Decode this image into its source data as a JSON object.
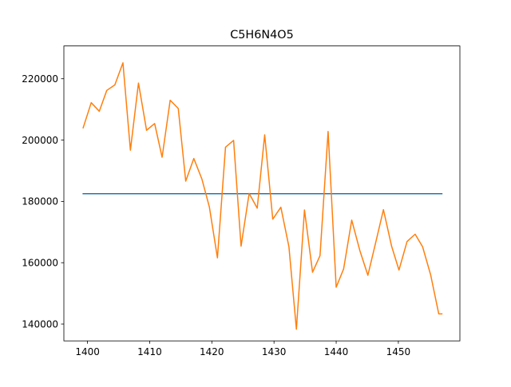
{
  "chart_data": {
    "type": "line",
    "title": "C5H6N4O5",
    "xlabel": "",
    "ylabel": "",
    "xlim": [
      1396.2,
      1459.9
    ],
    "ylim": [
      134500,
      230700
    ],
    "xticks": [
      1400,
      1410,
      1420,
      1430,
      1440,
      1450
    ],
    "yticks": [
      140000,
      160000,
      180000,
      200000,
      220000
    ],
    "xtick_labels": [
      "1400",
      "1410",
      "1420",
      "1430",
      "1440",
      "1450"
    ],
    "ytick_labels": [
      "140000",
      "160000",
      "180000",
      "200000",
      "220000"
    ],
    "grid": false,
    "legend": "none",
    "series": [
      {
        "color": "#1f77b4",
        "x": [
          1399.3,
          1457.0
        ],
        "y": [
          182500,
          182500
        ]
      },
      {
        "color": "#ff7f0e",
        "x": [
          1399.3,
          1400.6,
          1401.9,
          1403.1,
          1404.4,
          1405.7,
          1406.9,
          1408.2,
          1409.5,
          1410.8,
          1412.0,
          1413.3,
          1414.6,
          1415.8,
          1417.1,
          1418.4,
          1419.6,
          1420.9,
          1422.2,
          1423.5,
          1424.7,
          1426.0,
          1427.3,
          1428.5,
          1429.8,
          1431.1,
          1432.4,
          1433.6,
          1434.9,
          1436.2,
          1437.4,
          1438.7,
          1440.0,
          1441.2,
          1442.5,
          1443.8,
          1445.1,
          1446.3,
          1447.6,
          1448.9,
          1450.1,
          1451.4,
          1452.7,
          1453.9,
          1455.2,
          1456.5,
          1457.0
        ],
        "y": [
          204000,
          212200,
          209400,
          216200,
          218000,
          225200,
          196700,
          218600,
          203200,
          205400,
          194400,
          213000,
          210300,
          186600,
          194000,
          187300,
          178200,
          161600,
          197700,
          199900,
          165400,
          182600,
          177800,
          201700,
          174200,
          178100,
          165200,
          138300,
          177200,
          156900,
          162300,
          202800,
          152000,
          158000,
          173900,
          164000,
          155900,
          166100,
          177300,
          165500,
          157600,
          166900,
          169300,
          165200,
          156000,
          143300,
          143300
        ]
      }
    ]
  }
}
